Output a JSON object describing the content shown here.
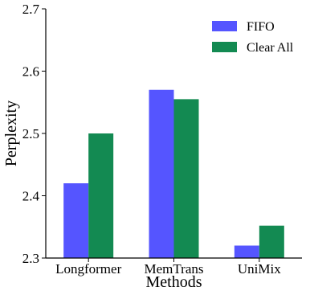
{
  "chart_data": {
    "type": "bar",
    "title": "",
    "xlabel": "Methods",
    "ylabel": "Perplexity",
    "categories": [
      "Longformer",
      "MemTrans",
      "UniMix"
    ],
    "series": [
      {
        "name": "FIFO",
        "values": [
          2.42,
          2.57,
          2.32
        ],
        "color": "#5555ff"
      },
      {
        "name": "Clear All",
        "values": [
          2.5,
          2.555,
          2.352
        ],
        "color": "#138a52"
      }
    ],
    "ylim": [
      2.3,
      2.7
    ],
    "yticks": [
      "2.3",
      "2.4",
      "2.5",
      "2.6",
      "2.7"
    ],
    "grid": false,
    "legend_position": "top-right"
  }
}
